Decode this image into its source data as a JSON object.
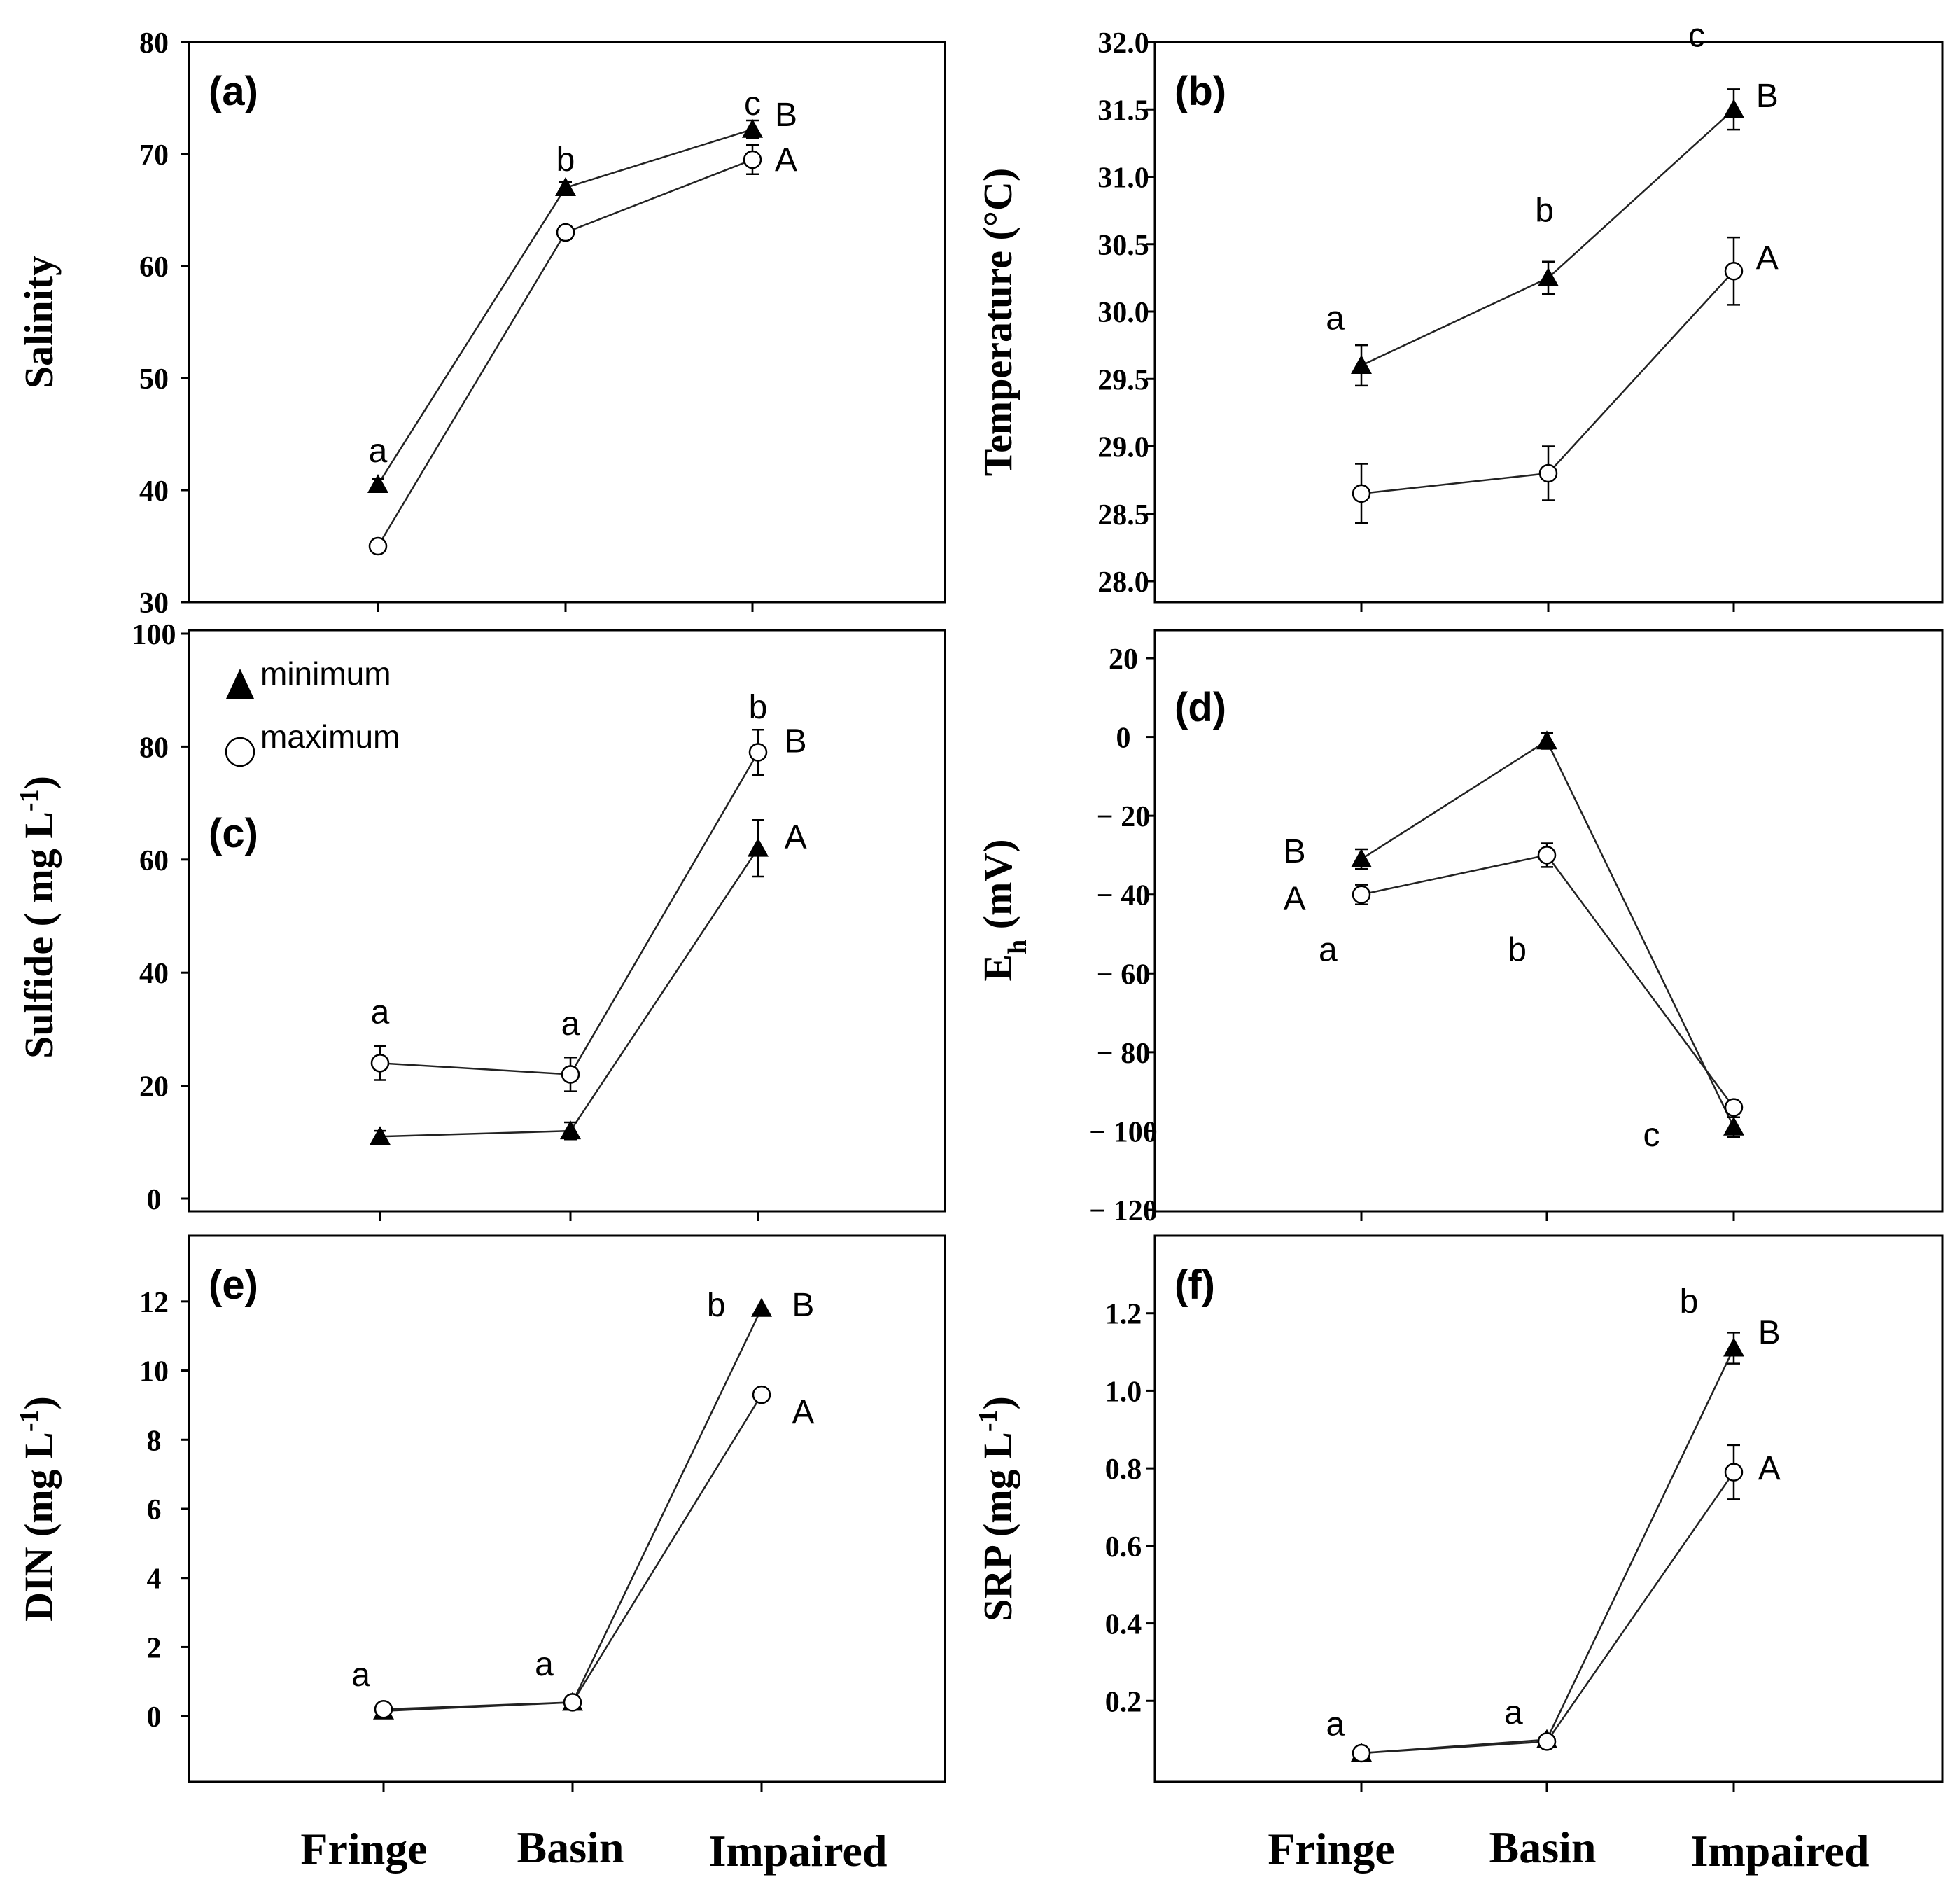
{
  "x_categories": [
    "Fringe",
    "Basin",
    "Impaired"
  ],
  "legend": {
    "minimum": "minimum",
    "maximum": "maximum"
  },
  "chart_data": [
    {
      "id": "a",
      "panel_label": "(a)",
      "type": "line",
      "ylabel": "Salinity",
      "ylim": [
        30,
        80
      ],
      "yticks": [
        30,
        40,
        50,
        60,
        70,
        80
      ],
      "categories": [
        "Fringe",
        "Basin",
        "Impaired"
      ],
      "series": [
        {
          "name": "minimum",
          "marker": "triangle",
          "values": [
            40.5,
            67,
            72.2
          ],
          "errors": [
            0.5,
            0.5,
            0.8
          ]
        },
        {
          "name": "maximum",
          "marker": "circle",
          "values": [
            35,
            63,
            69.5
          ],
          "errors": [
            0.5,
            0.6,
            1.3
          ]
        }
      ],
      "annotations": [
        {
          "text": "a",
          "at": [
            0,
            43.5
          ]
        },
        {
          "text": "b",
          "at": [
            1,
            69.5
          ]
        },
        {
          "text": "c",
          "at": [
            2,
            74.5
          ]
        },
        {
          "text": "B",
          "at": [
            2.18,
            73.5
          ]
        },
        {
          "text": "A",
          "at": [
            2.18,
            69.5
          ]
        }
      ]
    },
    {
      "id": "b",
      "panel_label": "(b)",
      "type": "line",
      "ylabel": "Temperature (°C)",
      "ylim": [
        28.0,
        32.0
      ],
      "yticks": [
        "28.0",
        "28.5",
        "29.0",
        "29.5",
        "30.0",
        "30.5",
        "31.0",
        "31.5",
        "32.0"
      ],
      "categories": [
        "Fringe",
        "Basin",
        "Impaired"
      ],
      "series": [
        {
          "name": "minimum",
          "marker": "triangle",
          "values": [
            29.6,
            30.25,
            31.5
          ],
          "errors": [
            0.15,
            0.12,
            0.15
          ]
        },
        {
          "name": "maximum",
          "marker": "circle",
          "values": [
            28.65,
            28.8,
            30.3
          ],
          "errors": [
            0.22,
            0.2,
            0.25
          ]
        }
      ],
      "annotations": [
        {
          "text": "a",
          "at": [
            -0.14,
            29.95
          ]
        },
        {
          "text": "b",
          "at": [
            -0.02,
            30.75
          ],
          "cat": 1
        },
        {
          "text": "c",
          "at": [
            -0.2,
            32.05
          ],
          "cat": 2
        },
        {
          "text": "B",
          "at": [
            0.18,
            31.6
          ],
          "cat": 2
        },
        {
          "text": "A",
          "at": [
            0.18,
            30.4
          ],
          "cat": 2
        }
      ]
    },
    {
      "id": "c",
      "panel_label": "(c)",
      "type": "line",
      "ylabel": "Sulfide ( mg L-1)",
      "ylim": [
        0,
        100
      ],
      "yticks": [
        0,
        20,
        40,
        60,
        80,
        100
      ],
      "categories": [
        "Fringe",
        "Basin",
        "Impaired"
      ],
      "series": [
        {
          "name": "minimum",
          "marker": "triangle",
          "values": [
            11,
            12,
            62
          ],
          "errors": [
            1,
            1.5,
            5
          ]
        },
        {
          "name": "maximum",
          "marker": "circle",
          "values": [
            24,
            22,
            79
          ],
          "errors": [
            3,
            3,
            4
          ]
        }
      ],
      "annotations": [
        {
          "text": "a",
          "at": [
            0,
            33
          ]
        },
        {
          "text": "a",
          "at": [
            1,
            31
          ]
        },
        {
          "text": "b",
          "at": [
            2,
            87
          ]
        },
        {
          "text": "B",
          "at": [
            2.2,
            81
          ]
        },
        {
          "text": "A",
          "at": [
            2.2,
            64
          ]
        }
      ]
    },
    {
      "id": "d",
      "panel_label": "(d)",
      "type": "line",
      "ylabel": "Eh (mV)",
      "ylim": [
        -120,
        20
      ],
      "yticks": [
        "− 120",
        "− 100",
        "− 80",
        "− 60",
        "− 40",
        "− 20",
        "0",
        "20"
      ],
      "categories": [
        "Fringe",
        "Basin",
        "Impaired"
      ],
      "series": [
        {
          "name": "minimum",
          "marker": "triangle",
          "values": [
            -31,
            -1,
            -99
          ],
          "errors": [
            2.5,
            2,
            2.5
          ]
        },
        {
          "name": "maximum",
          "marker": "circle",
          "values": [
            -40,
            -30,
            -94
          ],
          "errors": [
            2.5,
            3,
            1.5
          ]
        }
      ],
      "annotations": [
        {
          "text": "B",
          "at": [
            -0.36,
            -29
          ]
        },
        {
          "text": "A",
          "at": [
            -0.36,
            -41
          ]
        },
        {
          "text": "a",
          "at": [
            -0.18,
            -54
          ]
        },
        {
          "text": "b",
          "at": [
            -0.16,
            -54
          ],
          "cat": 1
        },
        {
          "text": "c",
          "at": [
            -0.44,
            -101
          ],
          "cat": 2
        }
      ]
    },
    {
      "id": "e",
      "panel_label": "(e)",
      "type": "line",
      "ylabel": "DIN (mg L-1)",
      "ylim": [
        -1.8,
        13.8
      ],
      "yticks": [
        0,
        2,
        4,
        6,
        8,
        10,
        12
      ],
      "categories": [
        "Fringe",
        "Basin",
        "Impaired"
      ],
      "series": [
        {
          "name": "minimum",
          "marker": "triangle",
          "values": [
            0.15,
            0.4,
            11.8
          ],
          "errors": [
            0,
            0,
            0
          ]
        },
        {
          "name": "maximum",
          "marker": "circle",
          "values": [
            0.2,
            0.4,
            9.3
          ],
          "errors": [
            0,
            0,
            0
          ]
        }
      ],
      "annotations": [
        {
          "text": "a",
          "at": [
            -0.12,
            1.2
          ]
        },
        {
          "text": "a",
          "at": [
            -0.15,
            1.5
          ],
          "cat": 1
        },
        {
          "text": "b",
          "at": [
            -0.24,
            11.9
          ],
          "cat": 2
        },
        {
          "text": "B",
          "at": [
            0.22,
            11.9
          ],
          "cat": 2
        },
        {
          "text": "A",
          "at": [
            0.22,
            8.8
          ],
          "cat": 2
        }
      ]
    },
    {
      "id": "f",
      "panel_label": "(f)",
      "type": "line",
      "ylabel": "SRP (mg L-1)",
      "ylim": [
        0,
        1.4
      ],
      "yticks": [
        "0.2",
        "0.4",
        "0.6",
        "0.8",
        "1.0",
        "1.2"
      ],
      "categories": [
        "Fringe",
        "Basin",
        "Impaired"
      ],
      "series": [
        {
          "name": "minimum",
          "marker": "triangle",
          "values": [
            0.065,
            0.1,
            1.11
          ],
          "errors": [
            0.01,
            0.01,
            0.04
          ]
        },
        {
          "name": "maximum",
          "marker": "circle",
          "values": [
            0.065,
            0.095,
            0.79
          ],
          "errors": [
            0.01,
            0.01,
            0.07
          ]
        }
      ],
      "annotations": [
        {
          "text": "a",
          "at": [
            -0.14,
            0.14
          ]
        },
        {
          "text": "a",
          "at": [
            -0.18,
            0.17
          ],
          "cat": 1
        },
        {
          "text": "b",
          "at": [
            -0.24,
            1.23
          ],
          "cat": 2
        },
        {
          "text": "B",
          "at": [
            0.19,
            1.15
          ],
          "cat": 2
        },
        {
          "text": "A",
          "at": [
            0.19,
            0.8
          ],
          "cat": 2
        }
      ]
    }
  ]
}
